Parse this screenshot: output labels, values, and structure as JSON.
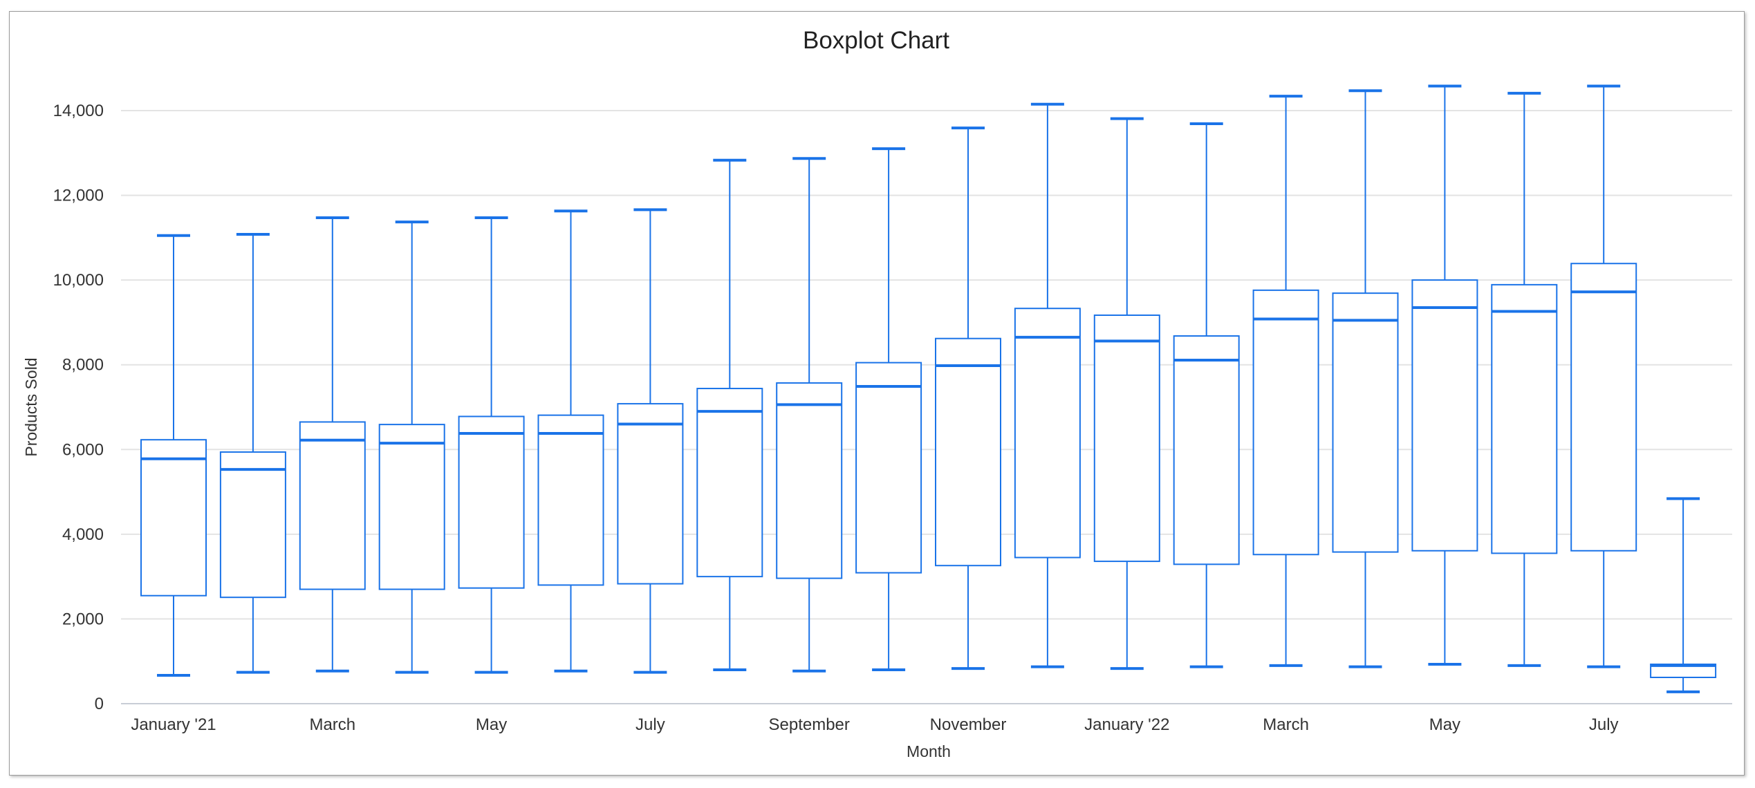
{
  "chart_data": {
    "type": "boxplot",
    "title": "Boxplot Chart",
    "xlabel": "Month",
    "ylabel": "Products Sold",
    "ylim": [
      0,
      14000
    ],
    "yticks": [
      0,
      2000,
      4000,
      6000,
      8000,
      10000,
      12000,
      14000
    ],
    "ytick_labels": [
      "0",
      "2,000",
      "4,000",
      "6,000",
      "8,000",
      "10,000",
      "12,000",
      "14,000"
    ],
    "xtick_labels": [
      {
        "index": 0,
        "label": "January '21"
      },
      {
        "index": 2,
        "label": "March"
      },
      {
        "index": 4,
        "label": "May"
      },
      {
        "index": 6,
        "label": "July"
      },
      {
        "index": 8,
        "label": "September"
      },
      {
        "index": 10,
        "label": "November"
      },
      {
        "index": 12,
        "label": "January '22"
      },
      {
        "index": 14,
        "label": "March"
      },
      {
        "index": 16,
        "label": "May"
      },
      {
        "index": 18,
        "label": "July"
      }
    ],
    "grid": true,
    "color": "#1a73e8",
    "boxes": [
      {
        "min": 670,
        "q1": 2550,
        "median": 5780,
        "q3": 6230,
        "max": 11050
      },
      {
        "min": 740,
        "q1": 2510,
        "median": 5530,
        "q3": 5940,
        "max": 11080
      },
      {
        "min": 770,
        "q1": 2700,
        "median": 6220,
        "q3": 6650,
        "max": 11470
      },
      {
        "min": 740,
        "q1": 2700,
        "median": 6150,
        "q3": 6590,
        "max": 11370
      },
      {
        "min": 740,
        "q1": 2730,
        "median": 6380,
        "q3": 6780,
        "max": 11470
      },
      {
        "min": 770,
        "q1": 2800,
        "median": 6380,
        "q3": 6810,
        "max": 11630
      },
      {
        "min": 740,
        "q1": 2830,
        "median": 6600,
        "q3": 7080,
        "max": 11660
      },
      {
        "min": 800,
        "q1": 3000,
        "median": 6900,
        "q3": 7440,
        "max": 12830
      },
      {
        "min": 770,
        "q1": 2960,
        "median": 7060,
        "q3": 7570,
        "max": 12870
      },
      {
        "min": 800,
        "q1": 3090,
        "median": 7490,
        "q3": 8050,
        "max": 13100
      },
      {
        "min": 830,
        "q1": 3260,
        "median": 7980,
        "q3": 8620,
        "max": 13590
      },
      {
        "min": 870,
        "q1": 3450,
        "median": 8650,
        "q3": 9330,
        "max": 14150
      },
      {
        "min": 830,
        "q1": 3360,
        "median": 8560,
        "q3": 9170,
        "max": 13810
      },
      {
        "min": 870,
        "q1": 3290,
        "median": 8110,
        "q3": 8680,
        "max": 13690
      },
      {
        "min": 900,
        "q1": 3520,
        "median": 9080,
        "q3": 9760,
        "max": 14340
      },
      {
        "min": 870,
        "q1": 3580,
        "median": 9050,
        "q3": 9690,
        "max": 14470
      },
      {
        "min": 930,
        "q1": 3610,
        "median": 9350,
        "q3": 10000,
        "max": 14580
      },
      {
        "min": 900,
        "q1": 3550,
        "median": 9260,
        "q3": 9890,
        "max": 14410
      },
      {
        "min": 870,
        "q1": 3610,
        "median": 9720,
        "q3": 10390,
        "max": 14580
      },
      {
        "min": 280,
        "q1": 620,
        "median": 900,
        "q3": 930,
        "max": 4840
      }
    ]
  }
}
